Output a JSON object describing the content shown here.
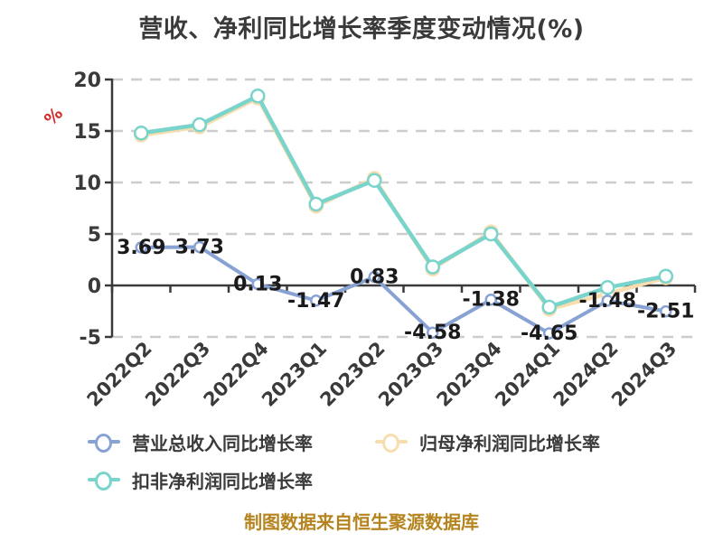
{
  "page": {
    "title": "营收、净利同比增长率季度变动情况(%)",
    "footer": "制图数据来自恒生聚源数据库",
    "footer_color": "#b5841f"
  },
  "chart_data": {
    "type": "line",
    "title": "营收、净利同比增长率季度变动情况(%)",
    "y_axis_name": "%",
    "y_axis_name_color": "#d62b2b",
    "ylim": [
      -5,
      20
    ],
    "y_ticks": [
      "20",
      "15",
      "10",
      "5",
      "0",
      "-5"
    ],
    "y_tick_values": [
      20,
      15,
      10,
      5,
      0,
      -5
    ],
    "grid": "horizontal dashed",
    "grid_color": "#cdcdcd",
    "axis_color": "#3a3a3a",
    "legend_position": "bottom-left",
    "categories": [
      "2022Q2",
      "2022Q3",
      "2022Q4",
      "2023Q1",
      "2023Q2",
      "2023Q3",
      "2023Q4",
      "2024Q1",
      "2024Q2",
      "2024Q3"
    ],
    "series": [
      {
        "name": "营业总收入同比增长率",
        "color": "#88a2d4",
        "marker": "circle",
        "labels_visible": true,
        "values": [
          3.69,
          3.73,
          0.13,
          -1.47,
          0.83,
          -4.58,
          -1.38,
          -4.65,
          -1.48,
          -2.51
        ],
        "data_labels": [
          "3.69",
          "3.73",
          "0.13",
          "-1.47",
          "0.83",
          "-4.58",
          "-1.38",
          "-4.65",
          "-1.48",
          "-2.51"
        ]
      },
      {
        "name": "归母净利润同比增长率",
        "color": "#f8ddae",
        "marker": "circle",
        "labels_visible": false,
        "values": [
          14.6,
          15.4,
          18.2,
          7.7,
          10.4,
          1.6,
          5.2,
          -2.3,
          -0.8,
          0.75
        ]
      },
      {
        "name": "扣非净利润同比增长率",
        "color": "#79d4cc",
        "marker": "circle",
        "labels_visible": false,
        "values": [
          14.8,
          15.6,
          18.4,
          7.9,
          10.2,
          1.8,
          5.0,
          -2.1,
          -0.2,
          0.9
        ]
      }
    ]
  }
}
